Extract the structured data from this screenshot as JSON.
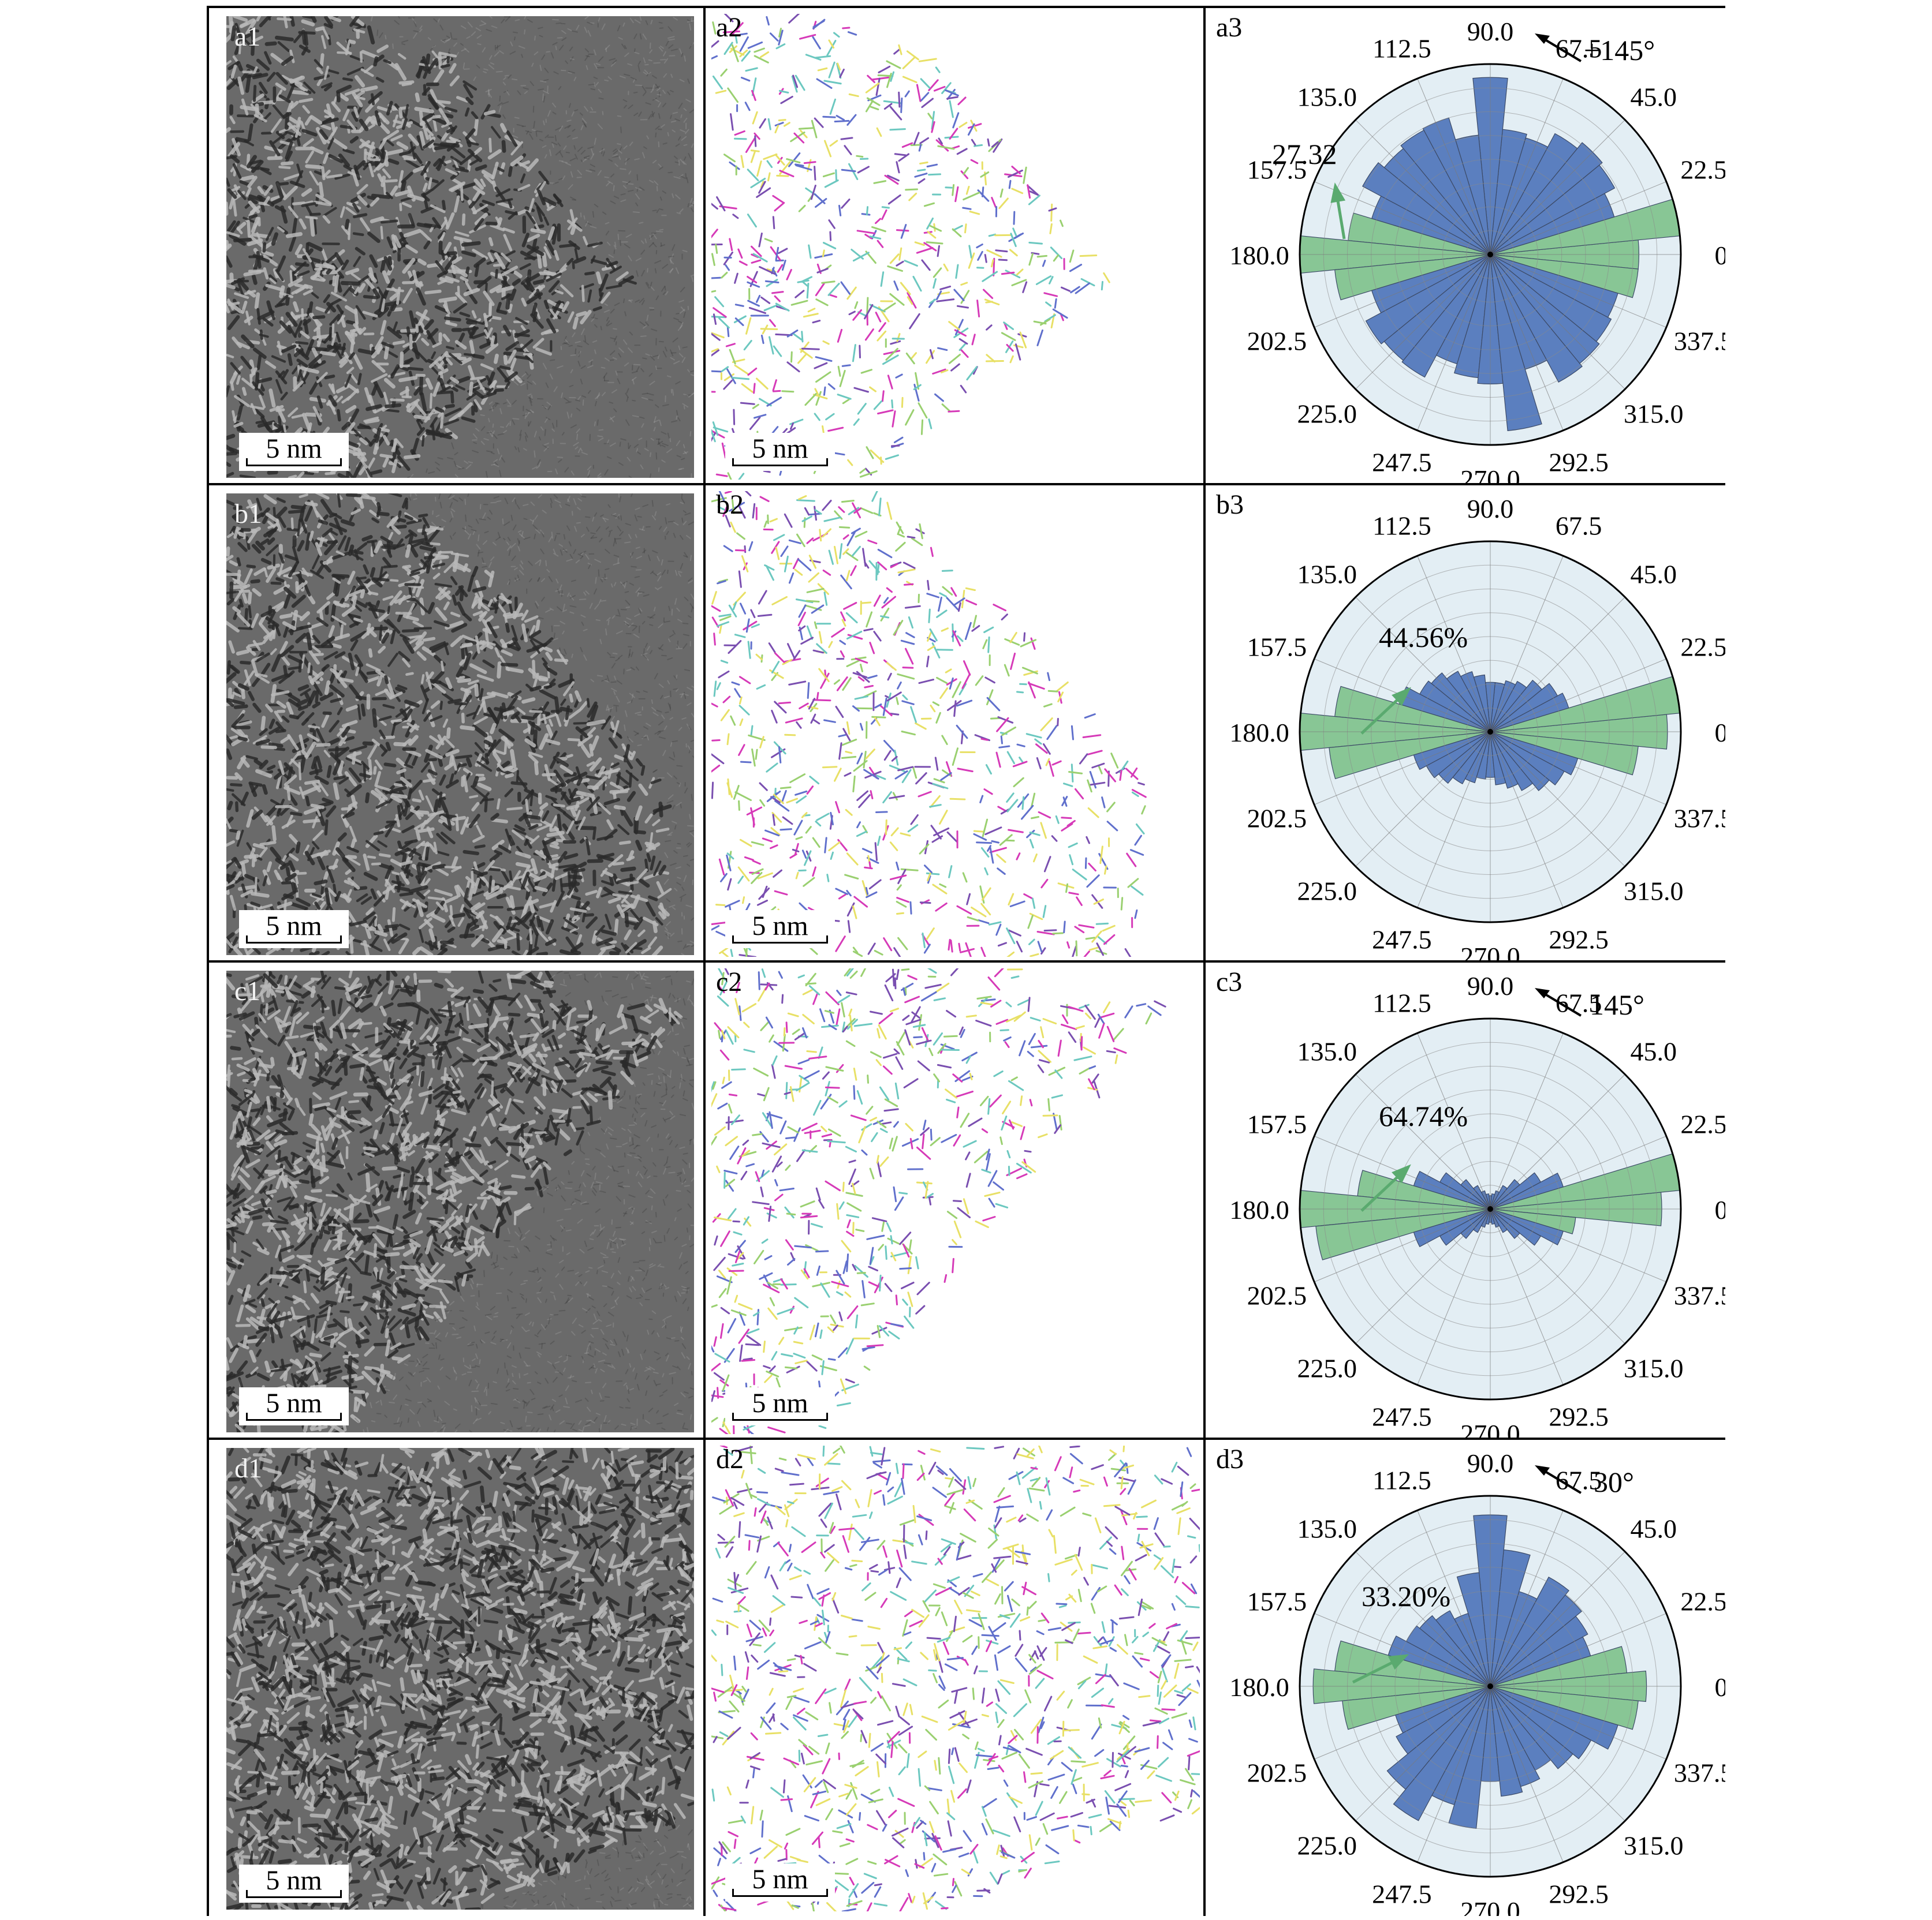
{
  "scale_bar_label": "5 nm",
  "colors": {
    "polar_background": "#e3eef4",
    "bar_blue": "#5b7fbf",
    "bar_green": "#88c695",
    "arrow_green": "#5aaa6f",
    "fringe_colors": [
      "#6070cc",
      "#d63ab8",
      "#e8e066",
      "#6cc8c0",
      "#9ad070",
      "#7a4fb0"
    ]
  },
  "polar_angle_labels": [
    "0",
    "22.5",
    "45.0",
    "67.5",
    "90.0",
    "112.5",
    "135.0",
    "157.5",
    "180.0",
    "202.5",
    "225.0",
    "247.5",
    "270.0",
    "292.5",
    "315.0",
    "337.5"
  ],
  "rows": [
    {
      "tem_label": "a1",
      "fringe_label": "a2",
      "rose_label": "a3",
      "percent_annotation": "27.32",
      "orientation_annotation": "+145°",
      "chart_data": {
        "type": "polar-bar",
        "angles_deg": [
          0,
          11.25,
          22.5,
          33.75,
          45,
          56.25,
          67.5,
          78.75,
          90,
          101.25,
          112.5,
          123.75,
          135,
          146.25,
          157.5,
          168.75,
          180,
          191.25,
          202.5,
          213.75,
          225,
          236.25,
          247.5,
          258.75,
          270,
          281.25,
          292.5,
          303.75,
          315,
          326.25,
          337.5,
          348.75
        ],
        "values": [
          0.78,
          1.0,
          0.68,
          0.74,
          0.76,
          0.72,
          0.64,
          0.66,
          0.93,
          0.63,
          0.75,
          0.74,
          0.72,
          0.76,
          0.65,
          0.75,
          1.0,
          0.82,
          0.65,
          0.74,
          0.72,
          0.73,
          0.6,
          0.65,
          0.68,
          0.93,
          0.63,
          0.76,
          0.74,
          0.72,
          0.7,
          0.78
        ],
        "highlight_angles_deg": [
          0,
          11.25,
          168.75,
          180,
          191.25,
          348.75
        ]
      }
    },
    {
      "tem_label": "b1",
      "fringe_label": "b2",
      "rose_label": "b3",
      "percent_annotation": "44.56%",
      "orientation_annotation": "",
      "chart_data": {
        "type": "polar-bar",
        "angles_deg": [
          0,
          11.25,
          22.5,
          33.75,
          45,
          56.25,
          67.5,
          78.75,
          90,
          101.25,
          112.5,
          123.75,
          135,
          146.25,
          157.5,
          168.75,
          180,
          191.25,
          202.5,
          213.75,
          225,
          236.25,
          247.5,
          258.75,
          270,
          281.25,
          292.5,
          303.75,
          315,
          326.25,
          337.5,
          348.75
        ],
        "values": [
          0.93,
          1.0,
          0.43,
          0.4,
          0.35,
          0.3,
          0.28,
          0.26,
          0.26,
          0.3,
          0.33,
          0.36,
          0.4,
          0.42,
          0.5,
          0.82,
          1.0,
          0.85,
          0.42,
          0.38,
          0.35,
          0.31,
          0.28,
          0.25,
          0.24,
          0.28,
          0.31,
          0.35,
          0.4,
          0.44,
          0.48,
          0.78
        ],
        "highlight_angles_deg": [
          0,
          11.25,
          168.75,
          180,
          191.25,
          348.75
        ]
      }
    },
    {
      "tem_label": "c1",
      "fringe_label": "c2",
      "rose_label": "c3",
      "percent_annotation": "64.74%",
      "orientation_annotation": "145°",
      "chart_data": {
        "type": "polar-bar",
        "angles_deg": [
          0,
          11.25,
          22.5,
          33.75,
          45,
          56.25,
          67.5,
          78.75,
          90,
          101.25,
          112.5,
          123.75,
          135,
          146.25,
          157.5,
          168.75,
          180,
          191.25,
          202.5,
          213.75,
          225,
          236.25,
          247.5,
          258.75,
          270,
          281.25,
          292.5,
          303.75,
          315,
          326.25,
          337.5,
          348.75
        ],
        "values": [
          0.9,
          1.0,
          0.4,
          0.3,
          0.2,
          0.14,
          0.1,
          0.08,
          0.07,
          0.08,
          0.1,
          0.14,
          0.2,
          0.3,
          0.42,
          0.7,
          1.0,
          0.92,
          0.42,
          0.3,
          0.2,
          0.14,
          0.1,
          0.08,
          0.07,
          0.08,
          0.1,
          0.14,
          0.2,
          0.3,
          0.4,
          0.45
        ],
        "highlight_angles_deg": [
          0,
          11.25,
          168.75,
          180,
          191.25,
          348.75
        ]
      }
    },
    {
      "tem_label": "d1",
      "fringe_label": "d2",
      "rose_label": "d3",
      "percent_annotation": "33.20%",
      "orientation_annotation": "30°",
      "chart_data": {
        "type": "polar-bar",
        "angles_deg": [
          0,
          11.25,
          22.5,
          33.75,
          45,
          56.25,
          67.5,
          78.75,
          90,
          101.25,
          112.5,
          123.75,
          135,
          146.25,
          157.5,
          168.75,
          180,
          191.25,
          202.5,
          213.75,
          225,
          236.25,
          247.5,
          258.75,
          270,
          281.25,
          292.5,
          303.75,
          315,
          326.25,
          337.5,
          348.75
        ],
        "values": [
          0.82,
          0.72,
          0.55,
          0.58,
          0.62,
          0.65,
          0.52,
          0.72,
          0.9,
          0.6,
          0.4,
          0.45,
          0.48,
          0.5,
          0.56,
          0.82,
          0.93,
          0.78,
          0.52,
          0.56,
          0.7,
          0.8,
          0.65,
          0.75,
          0.5,
          0.58,
          0.55,
          0.5,
          0.56,
          0.6,
          0.7,
          0.78
        ],
        "highlight_angles_deg": [
          0,
          11.25,
          168.75,
          180,
          191.25,
          348.75
        ]
      }
    }
  ]
}
